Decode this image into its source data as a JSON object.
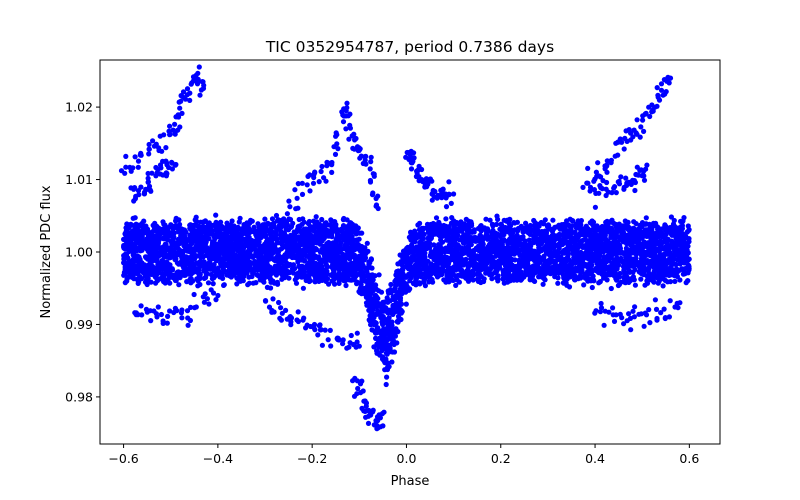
{
  "chart_data": {
    "type": "scatter",
    "title": "TIC 0352954787, period 0.7386 days",
    "xlabel": "Phase",
    "ylabel": "Normalized PDC flux",
    "xlim": [
      -0.65,
      0.665
    ],
    "ylim": [
      0.9735,
      1.0265
    ],
    "xticks": [
      -0.6,
      -0.4,
      -0.2,
      0.0,
      0.2,
      0.4,
      0.6
    ],
    "xtick_labels": [
      "−0.6",
      "−0.4",
      "−0.2",
      "0.0",
      "0.2",
      "0.4",
      "0.6"
    ],
    "yticks": [
      0.98,
      0.99,
      1.0,
      1.01,
      1.02
    ],
    "ytick_labels": [
      "0.98",
      "0.99",
      "1.00",
      "1.01",
      "1.02"
    ],
    "grid": false,
    "series": [
      {
        "name": "PDC flux",
        "color": "#0000ff",
        "band": {
          "x_range": [
            -0.6,
            0.6
          ],
          "baseline": 1.0,
          "scatter_amplitude": 0.0045,
          "primary_eclipse": {
            "center": -0.045,
            "depth": 0.014,
            "width": 0.025
          }
        },
        "outlier_tracks": [
          {
            "name": "upper-left",
            "points": [
              [
                -0.6,
                1.011
              ],
              [
                -0.55,
                1.014
              ],
              [
                -0.5,
                1.016
              ],
              [
                -0.48,
                1.02
              ],
              [
                -0.45,
                1.024
              ],
              [
                -0.43,
                1.023
              ]
            ]
          },
          {
            "name": "upper-left-inner",
            "points": [
              [
                -0.58,
                1.008
              ],
              [
                -0.55,
                1.009
              ],
              [
                -0.52,
                1.011
              ],
              [
                -0.49,
                1.012
              ]
            ]
          },
          {
            "name": "mid-upper",
            "points": [
              [
                -0.25,
                1.006
              ],
              [
                -0.2,
                1.01
              ],
              [
                -0.16,
                1.012
              ],
              [
                -0.13,
                1.02
              ],
              [
                -0.11,
                1.015
              ],
              [
                -0.08,
                1.012
              ],
              [
                -0.06,
                1.006
              ]
            ]
          },
          {
            "name": "mid-lower",
            "points": [
              [
                -0.3,
                0.993
              ],
              [
                -0.25,
                0.991
              ],
              [
                -0.2,
                0.989
              ],
              [
                -0.15,
                0.988
              ],
              [
                -0.1,
                0.987
              ]
            ]
          },
          {
            "name": "eclipse-deep",
            "points": [
              [
                -0.11,
                0.983
              ],
              [
                -0.09,
                0.978
              ],
              [
                -0.07,
                0.977
              ],
              [
                -0.05,
                0.976
              ]
            ]
          },
          {
            "name": "post-eclipse",
            "points": [
              [
                0.0,
                1.013
              ],
              [
                0.02,
                1.012
              ],
              [
                0.04,
                1.009
              ],
              [
                0.07,
                1.008
              ],
              [
                0.1,
                1.008
              ]
            ]
          },
          {
            "name": "upper-right",
            "points": [
              [
                0.38,
                1.009
              ],
              [
                0.42,
                1.012
              ],
              [
                0.46,
                1.015
              ],
              [
                0.5,
                1.018
              ],
              [
                0.53,
                1.021
              ],
              [
                0.56,
                1.024
              ]
            ]
          },
          {
            "name": "upper-right-inner",
            "points": [
              [
                0.4,
                1.008
              ],
              [
                0.44,
                1.009
              ],
              [
                0.48,
                1.01
              ],
              [
                0.51,
                1.012
              ]
            ]
          },
          {
            "name": "lower-left",
            "points": [
              [
                -0.58,
                0.992
              ],
              [
                -0.52,
                0.991
              ],
              [
                -0.46,
                0.992
              ],
              [
                -0.4,
                0.994
              ]
            ]
          },
          {
            "name": "lower-right",
            "points": [
              [
                0.4,
                0.992
              ],
              [
                0.46,
                0.991
              ],
              [
                0.52,
                0.991
              ],
              [
                0.58,
                0.993
              ]
            ]
          }
        ]
      }
    ]
  }
}
